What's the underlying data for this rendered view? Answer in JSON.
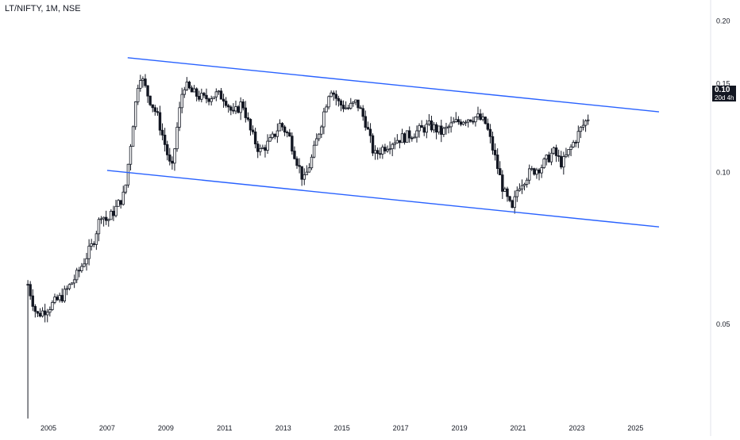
{
  "header": {
    "symbol_title": "LT/NIFTY, 1M, NSE"
  },
  "price_badge": {
    "value": "0.10",
    "countdown": "20d 4h"
  },
  "colors": {
    "candle": "#131722",
    "trendline": "#2962ff",
    "axis_text": "#131722",
    "badge_bg": "#131722"
  },
  "chart_data": {
    "type": "candlestick",
    "interval": "1M",
    "y_scale": "log",
    "ylim": [
      0.03,
      0.22
    ],
    "xlim": [
      2004.0,
      2025.8
    ],
    "x_ticks": [
      2005,
      2007,
      2009,
      2011,
      2013,
      2015,
      2017,
      2019,
      2021,
      2023,
      2025
    ],
    "y_ticks": [
      0.05,
      0.1,
      0.15,
      0.2
    ],
    "last_price": 0.1,
    "price_path": [
      [
        2004.3,
        0.06
      ],
      [
        2004.6,
        0.052
      ],
      [
        2005.0,
        0.054
      ],
      [
        2005.5,
        0.057
      ],
      [
        2006.0,
        0.063
      ],
      [
        2006.5,
        0.072
      ],
      [
        2006.8,
        0.083
      ],
      [
        2007.0,
        0.08
      ],
      [
        2007.3,
        0.085
      ],
      [
        2007.6,
        0.091
      ],
      [
        2007.9,
        0.128
      ],
      [
        2008.1,
        0.158
      ],
      [
        2008.4,
        0.142
      ],
      [
        2008.7,
        0.13
      ],
      [
        2009.0,
        0.112
      ],
      [
        2009.2,
        0.1
      ],
      [
        2009.4,
        0.125
      ],
      [
        2009.6,
        0.15
      ],
      [
        2009.9,
        0.144
      ],
      [
        2010.3,
        0.14
      ],
      [
        2010.7,
        0.143
      ],
      [
        2011.0,
        0.141
      ],
      [
        2011.3,
        0.13
      ],
      [
        2011.6,
        0.138
      ],
      [
        2011.9,
        0.12
      ],
      [
        2012.2,
        0.11
      ],
      [
        2012.6,
        0.116
      ],
      [
        2012.9,
        0.125
      ],
      [
        2013.2,
        0.118
      ],
      [
        2013.5,
        0.104
      ],
      [
        2013.7,
        0.096
      ],
      [
        2014.0,
        0.108
      ],
      [
        2014.3,
        0.126
      ],
      [
        2014.6,
        0.148
      ],
      [
        2014.9,
        0.137
      ],
      [
        2015.2,
        0.134
      ],
      [
        2015.5,
        0.138
      ],
      [
        2015.8,
        0.126
      ],
      [
        2016.1,
        0.108
      ],
      [
        2016.4,
        0.112
      ],
      [
        2016.8,
        0.116
      ],
      [
        2017.2,
        0.118
      ],
      [
        2017.6,
        0.121
      ],
      [
        2018.0,
        0.124
      ],
      [
        2018.4,
        0.12
      ],
      [
        2018.8,
        0.125
      ],
      [
        2019.2,
        0.128
      ],
      [
        2019.6,
        0.129
      ],
      [
        2019.9,
        0.125
      ],
      [
        2020.2,
        0.108
      ],
      [
        2020.5,
        0.092
      ],
      [
        2020.8,
        0.084
      ],
      [
        2021.0,
        0.094
      ],
      [
        2021.4,
        0.1
      ],
      [
        2021.8,
        0.103
      ],
      [
        2022.2,
        0.11
      ],
      [
        2022.5,
        0.104
      ],
      [
        2022.8,
        0.112
      ],
      [
        2023.1,
        0.121
      ],
      [
        2023.4,
        0.129
      ]
    ],
    "trendlines": [
      {
        "from": [
          2007.7,
          0.169
        ],
        "to": [
          2025.8,
          0.132
        ]
      },
      {
        "from": [
          2007.0,
          0.101
        ],
        "to": [
          2025.8,
          0.078
        ]
      }
    ]
  }
}
